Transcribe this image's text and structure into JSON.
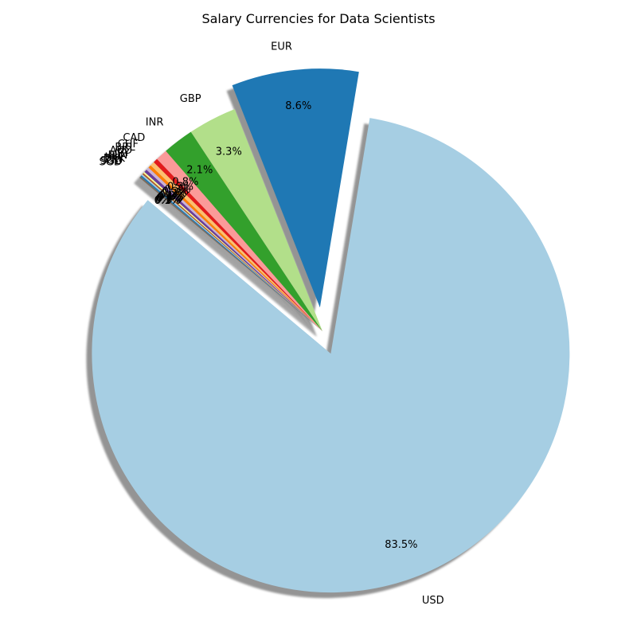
{
  "chart_data": {
    "type": "pie",
    "title": "Salary Currencies for Data Scientists",
    "start_angle_deg": 140,
    "explode_categories": [
      "USD",
      "EUR"
    ],
    "shadow": true,
    "slices": [
      {
        "label": "USD",
        "value": 83.5,
        "pct_label": "83.5%",
        "color": "#a6cee3"
      },
      {
        "label": "EUR",
        "value": 8.6,
        "pct_label": "8.6%",
        "color": "#1f78b4"
      },
      {
        "label": "GBP",
        "value": 3.3,
        "pct_label": "3.3%",
        "color": "#b2df8a"
      },
      {
        "label": "INR",
        "value": 2.1,
        "pct_label": "2.1%",
        "color": "#33a02c"
      },
      {
        "label": "CAD",
        "value": 0.8,
        "pct_label": "0.8%",
        "color": "#fb9a99"
      },
      {
        "label": "CHF",
        "value": 0.3,
        "pct_label": "0.3%",
        "color": "#e31a1c"
      },
      {
        "label": "BRL",
        "value": 0.3,
        "pct_label": "0.3%",
        "color": "#fdbf6f"
      },
      {
        "label": "AUD",
        "value": 0.2,
        "pct_label": "0.2%",
        "color": "#ff7f00"
      },
      {
        "label": "JPY",
        "value": 0.2,
        "pct_label": "0.2%",
        "color": "#cab2d6"
      },
      {
        "label": "PLN",
        "value": 0.2,
        "pct_label": "0.2%",
        "color": "#6a3d9a"
      },
      {
        "label": "HUF",
        "value": 0.1,
        "pct_label": "0.1%",
        "color": "#ffff99"
      },
      {
        "label": "DKK",
        "value": 0.1,
        "pct_label": "0.1%",
        "color": "#b15928"
      },
      {
        "label": "TRY",
        "value": 0.1,
        "pct_label": "0.1%",
        "color": "#a6cee3"
      },
      {
        "label": "SGD",
        "value": 0.1,
        "pct_label": "0.1%",
        "color": "#1f78b4"
      },
      {
        "label": "SGD",
        "value": 0.1,
        "pct_label": "0.1%",
        "color": "#7d6a5a"
      }
    ]
  }
}
